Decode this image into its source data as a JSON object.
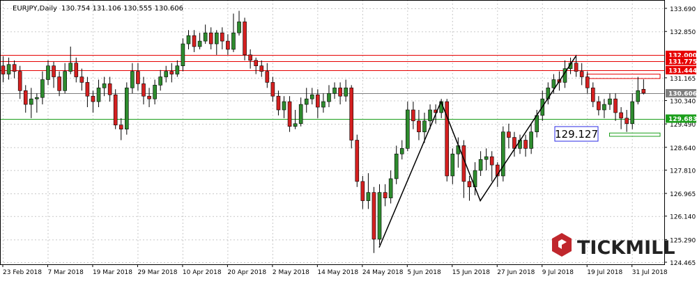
{
  "header": {
    "symbol": "EURJPY,Daily",
    "ohlc": "130.754 131.106 130.555 130.606"
  },
  "logo": {
    "text": "TICKMILL"
  },
  "chart_data": {
    "type": "candlestick",
    "title": "EURJPY,Daily",
    "ylim": [
      124.465,
      133.69
    ],
    "y_ticks": [
      "133.690",
      "132.850",
      "131.165",
      "130.340",
      "129.490",
      "128.640",
      "127.810",
      "126.965",
      "126.140",
      "125.290",
      "124.465"
    ],
    "x_labels": [
      {
        "label": "23 Feb 2018",
        "bar": 0
      },
      {
        "label": "7 Mar 2018",
        "bar": 8
      },
      {
        "label": "19 Mar 2018",
        "bar": 16
      },
      {
        "label": "29 Mar 2018",
        "bar": 24
      },
      {
        "label": "10 Apr 2018",
        "bar": 32
      },
      {
        "label": "20 Apr 2018",
        "bar": 40
      },
      {
        "label": "2 May 2018",
        "bar": 48
      },
      {
        "label": "14 May 2018",
        "bar": 56
      },
      {
        "label": "24 May 2018",
        "bar": 64
      },
      {
        "label": "5 Jun 2018",
        "bar": 72
      },
      {
        "label": "15 Jun 2018",
        "bar": 80
      },
      {
        "label": "27 Jun 2018",
        "bar": 88
      },
      {
        "label": "9 Jul 2018",
        "bar": 96
      },
      {
        "label": "19 Jul 2018",
        "bar": 104
      },
      {
        "label": "31 Jul 2018",
        "bar": 112
      }
    ],
    "levels": [
      {
        "value": "132.000",
        "color": "#e60000"
      },
      {
        "value": "131.775",
        "color": "#e60000"
      },
      {
        "value": "131.444",
        "color": "#e60000"
      },
      {
        "value": "130.606",
        "color": "#7f7f7f"
      },
      {
        "value": "129.683",
        "color": "#1a9e1a"
      }
    ],
    "annotation": {
      "text": "129.127",
      "color": "#2a2ae6"
    },
    "zones": [
      {
        "y1": 131.3,
        "y2": 131.14,
        "bar_from": 104,
        "bar_to": 117,
        "color": "#e60000"
      },
      {
        "y1": 129.16,
        "y2": 129.04,
        "bar_from": 108,
        "bar_to": 117,
        "color": "#1a9e1a"
      }
    ],
    "trendlines": [
      [
        [
          67,
          125.0
        ],
        [
          78,
          130.3
        ],
        [
          85,
          126.7
        ],
        [
          102,
          131.95
        ]
      ]
    ],
    "candles": [
      [
        131.6,
        131.3,
        131.95,
        131.0
      ],
      [
        131.3,
        131.65,
        131.9,
        131.1
      ],
      [
        131.65,
        131.4,
        131.8,
        131.15
      ],
      [
        131.4,
        130.7,
        131.6,
        130.4
      ],
      [
        130.7,
        130.2,
        130.9,
        129.9
      ],
      [
        130.2,
        130.4,
        130.8,
        129.7
      ],
      [
        130.4,
        130.45,
        130.6,
        129.9
      ],
      [
        130.45,
        131.1,
        131.4,
        130.2
      ],
      [
        131.1,
        131.6,
        131.8,
        130.9
      ],
      [
        131.6,
        131.2,
        131.75,
        130.8
      ],
      [
        131.2,
        130.7,
        131.4,
        130.5
      ],
      [
        130.7,
        131.4,
        131.7,
        130.6
      ],
      [
        131.4,
        131.7,
        132.3,
        131.3
      ],
      [
        131.7,
        131.2,
        131.9,
        131.0
      ],
      [
        131.2,
        131.0,
        131.5,
        130.7
      ],
      [
        131.0,
        130.5,
        131.2,
        130.1
      ],
      [
        130.5,
        130.3,
        130.7,
        129.9
      ],
      [
        130.3,
        130.8,
        131.1,
        130.1
      ],
      [
        130.8,
        130.95,
        131.2,
        130.5
      ],
      [
        130.95,
        130.55,
        131.2,
        130.3
      ],
      [
        130.55,
        129.45,
        130.75,
        129.3
      ],
      [
        129.45,
        129.3,
        129.7,
        128.9
      ],
      [
        129.3,
        130.8,
        131.0,
        129.1
      ],
      [
        130.8,
        131.4,
        131.7,
        130.6
      ],
      [
        131.4,
        130.95,
        131.7,
        130.7
      ],
      [
        130.95,
        130.5,
        131.2,
        130.2
      ],
      [
        130.5,
        130.4,
        130.8,
        130.1
      ],
      [
        130.4,
        130.9,
        131.1,
        130.2
      ],
      [
        130.9,
        131.2,
        131.45,
        130.7
      ],
      [
        131.2,
        131.4,
        131.6,
        131.0
      ],
      [
        131.4,
        131.3,
        131.7,
        131.0
      ],
      [
        131.3,
        131.6,
        131.8,
        131.2
      ],
      [
        131.6,
        132.4,
        132.6,
        131.4
      ],
      [
        132.4,
        132.7,
        132.9,
        132.2
      ],
      [
        132.7,
        132.3,
        132.9,
        132.1
      ],
      [
        132.3,
        132.5,
        132.8,
        132.2
      ],
      [
        132.5,
        132.8,
        133.1,
        132.4
      ],
      [
        132.8,
        132.4,
        133.0,
        132.2
      ],
      [
        132.4,
        132.8,
        132.9,
        132.0
      ],
      [
        132.8,
        132.5,
        133.0,
        132.2
      ],
      [
        132.5,
        132.2,
        132.75,
        132.0
      ],
      [
        132.2,
        132.8,
        133.5,
        132.1
      ],
      [
        132.8,
        133.2,
        133.6,
        132.7
      ],
      [
        133.2,
        132.0,
        133.35,
        131.8
      ],
      [
        132.0,
        131.8,
        132.2,
        131.5
      ],
      [
        131.8,
        131.6,
        131.9,
        131.3
      ],
      [
        131.6,
        131.4,
        131.8,
        131.2
      ],
      [
        131.4,
        131.0,
        131.7,
        130.8
      ],
      [
        131.0,
        130.5,
        131.2,
        130.3
      ],
      [
        130.5,
        130.0,
        130.7,
        129.8
      ],
      [
        130.0,
        130.3,
        130.5,
        129.7
      ],
      [
        130.3,
        129.4,
        130.5,
        129.2
      ],
      [
        129.4,
        129.5,
        130.0,
        129.3
      ],
      [
        129.5,
        130.2,
        130.45,
        129.4
      ],
      [
        130.2,
        130.4,
        130.8,
        129.9
      ],
      [
        130.4,
        130.55,
        130.8,
        130.2
      ],
      [
        130.55,
        130.1,
        130.75,
        129.7
      ],
      [
        130.1,
        130.3,
        130.6,
        129.9
      ],
      [
        130.3,
        130.6,
        130.9,
        130.1
      ],
      [
        130.6,
        130.8,
        131.0,
        130.4
      ],
      [
        130.8,
        130.5,
        131.0,
        130.2
      ],
      [
        130.5,
        130.8,
        131.1,
        130.3
      ],
      [
        130.8,
        128.9,
        130.9,
        128.6
      ],
      [
        128.9,
        127.4,
        129.1,
        127.2
      ],
      [
        127.4,
        126.7,
        127.6,
        126.4
      ],
      [
        126.7,
        127.0,
        127.7,
        126.4
      ],
      [
        127.0,
        125.3,
        127.2,
        124.8
      ],
      [
        125.3,
        127.0,
        127.3,
        125.1
      ],
      [
        127.0,
        126.8,
        127.3,
        126.5
      ],
      [
        126.8,
        127.5,
        127.8,
        126.6
      ],
      [
        127.5,
        128.4,
        128.7,
        127.3
      ],
      [
        128.4,
        128.6,
        128.9,
        128.2
      ],
      [
        128.6,
        130.0,
        130.3,
        128.5
      ],
      [
        130.0,
        129.6,
        130.3,
        129.3
      ],
      [
        129.6,
        129.2,
        130.0,
        128.9
      ],
      [
        129.2,
        129.6,
        129.9,
        128.8
      ],
      [
        129.6,
        130.0,
        130.2,
        129.3
      ],
      [
        130.0,
        129.9,
        130.2,
        129.5
      ],
      [
        129.9,
        130.3,
        130.4,
        129.7
      ],
      [
        130.3,
        127.6,
        130.4,
        127.4
      ],
      [
        127.6,
        128.4,
        128.6,
        127.3
      ],
      [
        128.4,
        128.7,
        129.0,
        127.9
      ],
      [
        128.7,
        127.4,
        128.9,
        126.8
      ],
      [
        127.4,
        127.2,
        127.6,
        126.7
      ],
      [
        127.2,
        127.8,
        128.1,
        126.9
      ],
      [
        127.8,
        128.2,
        128.5,
        127.6
      ],
      [
        128.2,
        128.3,
        128.6,
        127.8
      ],
      [
        128.3,
        128.0,
        128.5,
        127.4
      ],
      [
        128.0,
        127.6,
        128.1,
        127.2
      ],
      [
        127.6,
        129.2,
        129.4,
        127.4
      ],
      [
        129.2,
        129.0,
        129.5,
        128.6
      ],
      [
        129.0,
        128.6,
        129.2,
        128.3
      ],
      [
        128.6,
        128.9,
        129.1,
        128.4
      ],
      [
        128.9,
        128.6,
        129.1,
        128.3
      ],
      [
        128.6,
        129.2,
        129.5,
        128.4
      ],
      [
        129.2,
        129.8,
        130.0,
        129.0
      ],
      [
        129.8,
        130.4,
        130.7,
        129.6
      ],
      [
        130.4,
        130.8,
        131.0,
        130.2
      ],
      [
        130.8,
        131.1,
        131.3,
        130.6
      ],
      [
        131.1,
        131.0,
        131.4,
        130.7
      ],
      [
        131.0,
        131.5,
        131.8,
        130.8
      ],
      [
        131.5,
        131.7,
        131.9,
        131.3
      ],
      [
        131.7,
        131.4,
        132.0,
        131.2
      ],
      [
        131.4,
        131.2,
        131.7,
        130.9
      ],
      [
        131.2,
        130.8,
        131.4,
        130.6
      ],
      [
        130.8,
        130.3,
        131.0,
        130.1
      ],
      [
        130.3,
        130.0,
        130.5,
        129.8
      ],
      [
        130.0,
        130.2,
        130.4,
        129.7
      ],
      [
        130.2,
        130.4,
        130.6,
        130.0
      ],
      [
        130.4,
        129.9,
        130.6,
        129.6
      ],
      [
        129.9,
        129.7,
        130.1,
        129.3
      ],
      [
        129.7,
        129.5,
        130.0,
        129.2
      ],
      [
        129.5,
        130.3,
        130.6,
        129.3
      ],
      [
        130.3,
        130.7,
        131.2,
        130.2
      ],
      [
        130.75,
        130.61,
        131.11,
        130.56
      ]
    ]
  }
}
